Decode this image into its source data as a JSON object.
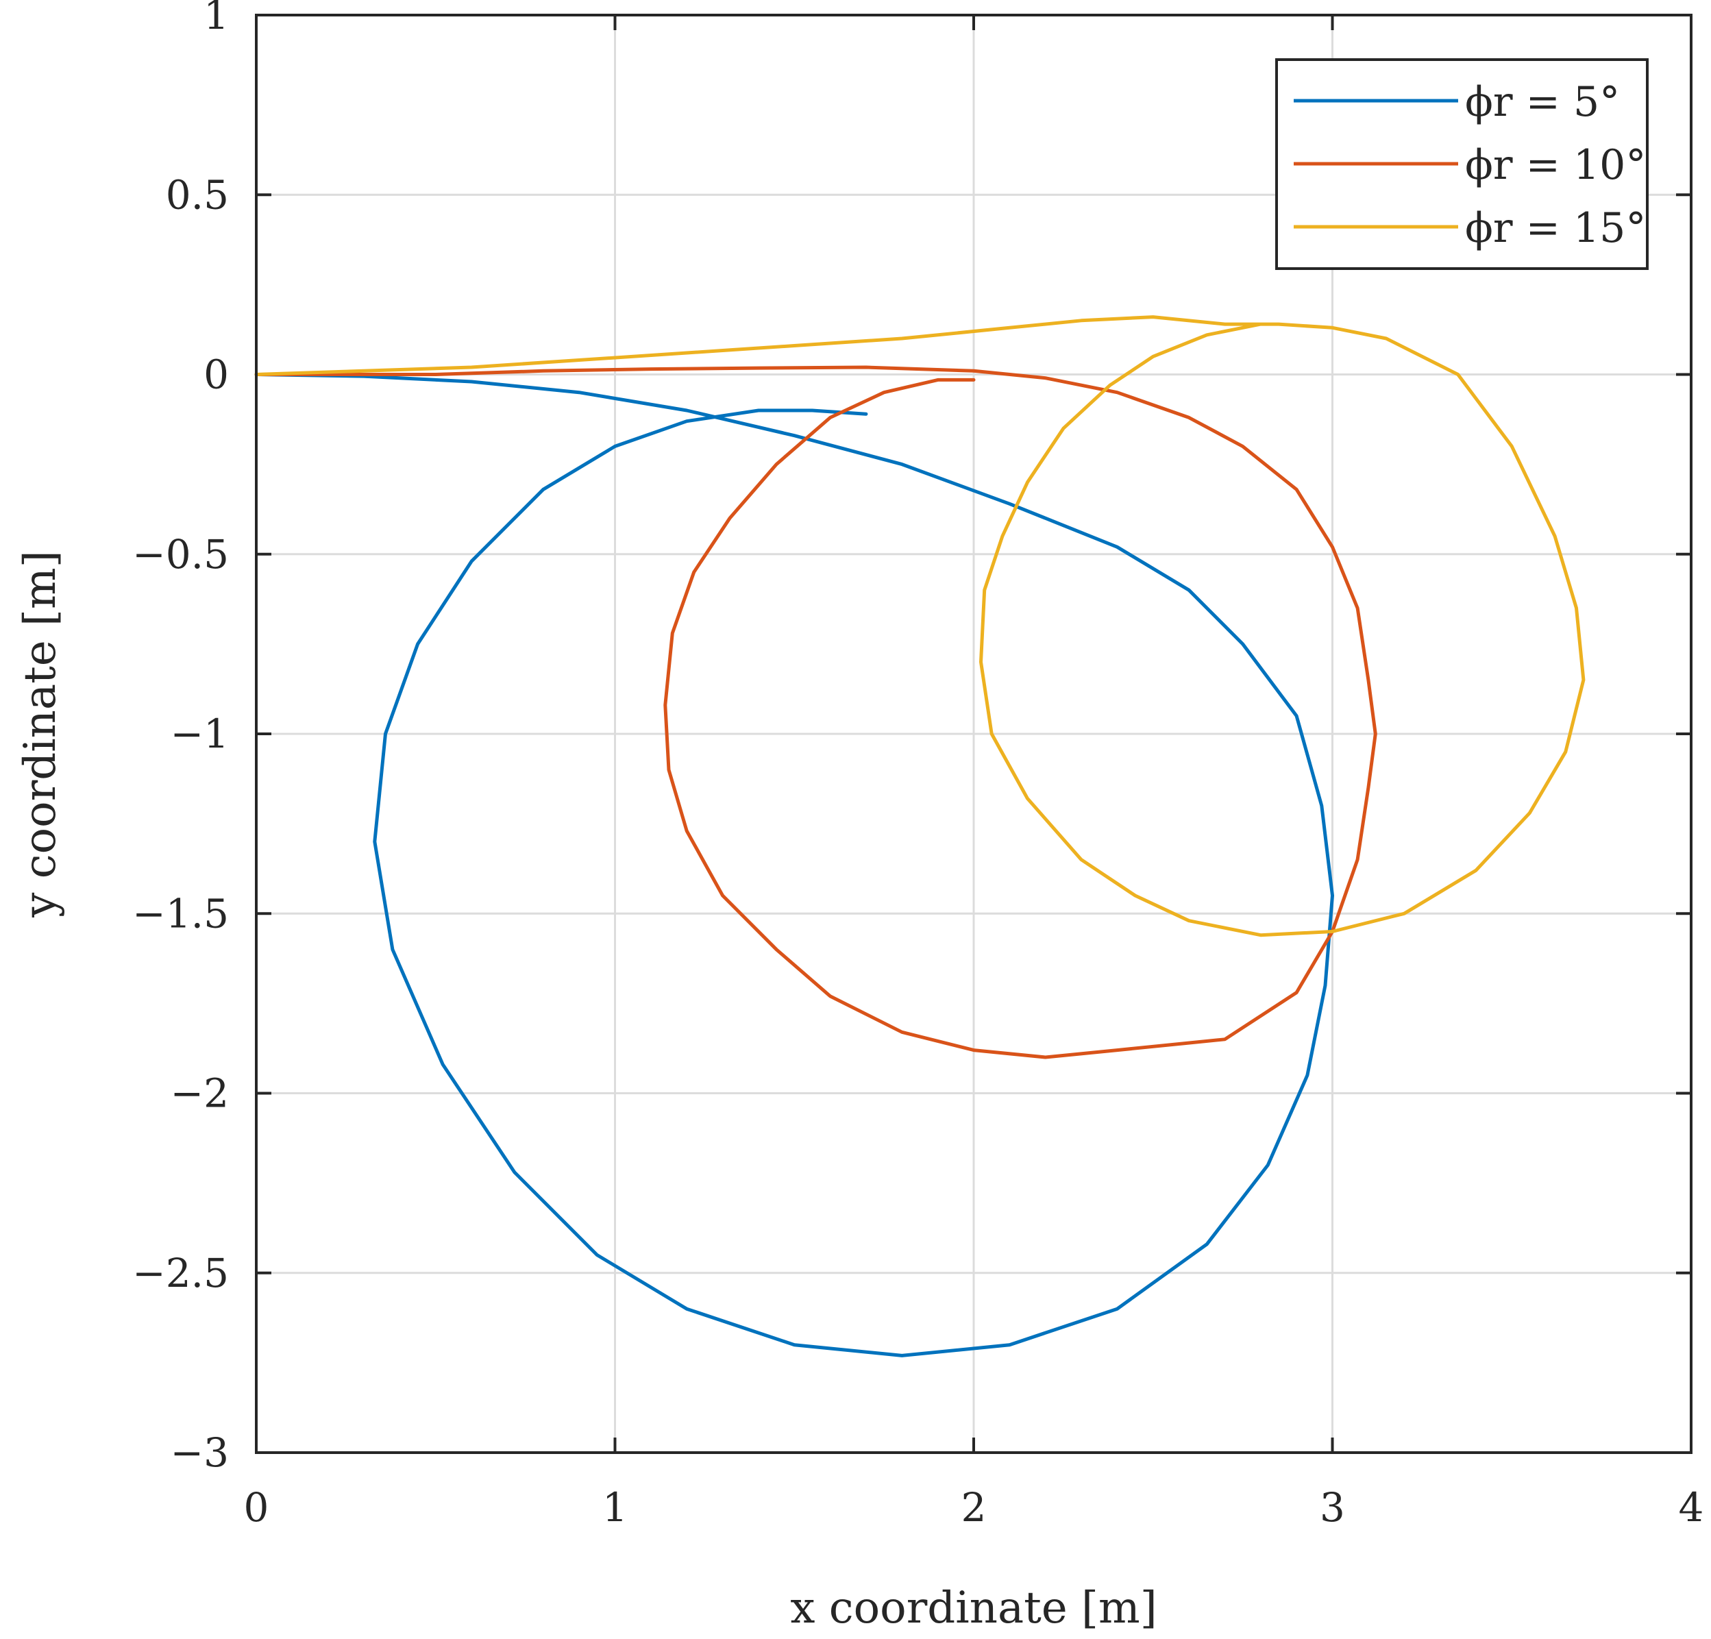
{
  "chart_data": {
    "type": "line",
    "xlabel": "x coordinate [m]",
    "ylabel": "y coordinate [m]",
    "xlim": [
      0,
      4
    ],
    "ylim": [
      -3,
      1
    ],
    "x_ticks": [
      0,
      1,
      2,
      3,
      4
    ],
    "x_tick_labels": [
      "0",
      "1",
      "2",
      "3",
      "4"
    ],
    "y_ticks": [
      1,
      0.5,
      0,
      -0.5,
      -1,
      -1.5,
      -2,
      -2.5,
      -3
    ],
    "y_tick_labels": [
      "1",
      "0.5",
      "0",
      "−0.5",
      "−1",
      "−1.5",
      "−2",
      "−2.5",
      "−3"
    ],
    "grid": true,
    "legend": {
      "position": "top-right"
    },
    "series": [
      {
        "name": "ϕr = 5°",
        "color": "#0072BD",
        "points": [
          [
            0.0,
            0.0
          ],
          [
            0.3,
            -0.005
          ],
          [
            0.6,
            -0.02
          ],
          [
            0.9,
            -0.05
          ],
          [
            1.2,
            -0.1
          ],
          [
            1.5,
            -0.17
          ],
          [
            1.8,
            -0.25
          ],
          [
            2.1,
            -0.36
          ],
          [
            2.4,
            -0.48
          ],
          [
            2.6,
            -0.6
          ],
          [
            2.75,
            -0.75
          ],
          [
            2.9,
            -0.95
          ],
          [
            2.97,
            -1.2
          ],
          [
            3.0,
            -1.45
          ],
          [
            2.98,
            -1.7
          ],
          [
            2.93,
            -1.95
          ],
          [
            2.82,
            -2.2
          ],
          [
            2.65,
            -2.42
          ],
          [
            2.4,
            -2.6
          ],
          [
            2.1,
            -2.7
          ],
          [
            1.8,
            -2.73
          ],
          [
            1.5,
            -2.7
          ],
          [
            1.2,
            -2.6
          ],
          [
            0.95,
            -2.45
          ],
          [
            0.72,
            -2.22
          ],
          [
            0.52,
            -1.92
          ],
          [
            0.38,
            -1.6
          ],
          [
            0.33,
            -1.3
          ],
          [
            0.36,
            -1.0
          ],
          [
            0.45,
            -0.75
          ],
          [
            0.6,
            -0.52
          ],
          [
            0.8,
            -0.32
          ],
          [
            1.0,
            -0.2
          ],
          [
            1.2,
            -0.13
          ],
          [
            1.4,
            -0.1
          ],
          [
            1.55,
            -0.1
          ],
          [
            1.7,
            -0.11
          ]
        ]
      },
      {
        "name": "ϕr = 10°",
        "color": "#D95319",
        "points": [
          [
            0.0,
            0.0
          ],
          [
            0.2,
            0.0
          ],
          [
            0.5,
            0.0
          ],
          [
            0.8,
            0.01
          ],
          [
            1.1,
            0.015
          ],
          [
            1.4,
            0.018
          ],
          [
            1.7,
            0.02
          ],
          [
            2.0,
            0.01
          ],
          [
            2.2,
            -0.01
          ],
          [
            2.4,
            -0.05
          ],
          [
            2.6,
            -0.12
          ],
          [
            2.75,
            -0.2
          ],
          [
            2.9,
            -0.32
          ],
          [
            3.0,
            -0.48
          ],
          [
            3.07,
            -0.65
          ],
          [
            3.1,
            -0.85
          ],
          [
            3.12,
            -1.0
          ],
          [
            3.1,
            -1.15
          ],
          [
            3.07,
            -1.35
          ],
          [
            3.0,
            -1.55
          ],
          [
            2.9,
            -1.72
          ],
          [
            2.7,
            -1.85
          ],
          [
            2.4,
            -1.88
          ],
          [
            2.2,
            -1.9
          ],
          [
            2.0,
            -1.88
          ],
          [
            1.8,
            -1.83
          ],
          [
            1.6,
            -1.73
          ],
          [
            1.45,
            -1.6
          ],
          [
            1.3,
            -1.45
          ],
          [
            1.2,
            -1.27
          ],
          [
            1.15,
            -1.1
          ],
          [
            1.14,
            -0.92
          ],
          [
            1.16,
            -0.72
          ],
          [
            1.22,
            -0.55
          ],
          [
            1.32,
            -0.4
          ],
          [
            1.45,
            -0.25
          ],
          [
            1.6,
            -0.12
          ],
          [
            1.75,
            -0.05
          ],
          [
            1.9,
            -0.015
          ],
          [
            2.0,
            -0.015
          ]
        ]
      },
      {
        "name": "ϕr = 15°",
        "color": "#EDB120",
        "points": [
          [
            0.0,
            0.0
          ],
          [
            0.3,
            0.01
          ],
          [
            0.6,
            0.02
          ],
          [
            0.9,
            0.04
          ],
          [
            1.2,
            0.06
          ],
          [
            1.5,
            0.08
          ],
          [
            1.8,
            0.1
          ],
          [
            2.1,
            0.13
          ],
          [
            2.3,
            0.15
          ],
          [
            2.5,
            0.16
          ],
          [
            2.7,
            0.14
          ],
          [
            2.85,
            0.14
          ],
          [
            3.0,
            0.13
          ],
          [
            3.15,
            0.1
          ],
          [
            3.35,
            0.0
          ],
          [
            3.5,
            -0.2
          ],
          [
            3.62,
            -0.45
          ],
          [
            3.68,
            -0.65
          ],
          [
            3.7,
            -0.85
          ],
          [
            3.65,
            -1.05
          ],
          [
            3.55,
            -1.22
          ],
          [
            3.4,
            -1.38
          ],
          [
            3.2,
            -1.5
          ],
          [
            3.0,
            -1.55
          ],
          [
            2.8,
            -1.56
          ],
          [
            2.6,
            -1.52
          ],
          [
            2.45,
            -1.45
          ],
          [
            2.3,
            -1.35
          ],
          [
            2.15,
            -1.18
          ],
          [
            2.05,
            -1.0
          ],
          [
            2.02,
            -0.8
          ],
          [
            2.03,
            -0.6
          ],
          [
            2.08,
            -0.45
          ],
          [
            2.15,
            -0.3
          ],
          [
            2.25,
            -0.15
          ],
          [
            2.38,
            -0.03
          ],
          [
            2.5,
            0.05
          ],
          [
            2.65,
            0.11
          ],
          [
            2.8,
            0.14
          ]
        ]
      }
    ]
  }
}
